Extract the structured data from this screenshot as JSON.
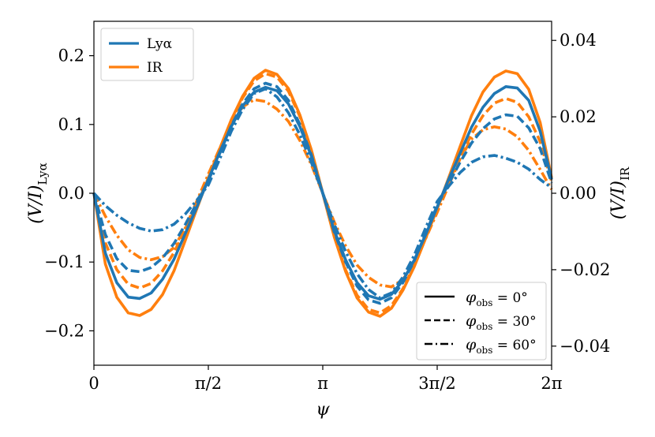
{
  "chart_data": {
    "type": "line",
    "xlabel": "ψ",
    "ylabel_left": "(V/I)",
    "ylabel_left_sub": "Lyα",
    "ylabel_right": "(V/I)",
    "ylabel_right_sub": "IR",
    "xlim": [
      0,
      6.2832
    ],
    "ylim_left": [
      -0.25,
      0.25
    ],
    "ylim_right": [
      -0.045,
      0.045
    ],
    "x_ticks": [
      0,
      1.5708,
      3.1416,
      4.7124,
      6.2832
    ],
    "x_tick_labels": [
      "0",
      "π/2",
      "π",
      "3π/2",
      "2π"
    ],
    "y_ticks_left": [
      -0.2,
      -0.1,
      0.0,
      0.1,
      0.2
    ],
    "y_tick_labels_left": [
      "−0.2",
      "−0.1",
      "0.0",
      "0.1",
      "0.2"
    ],
    "y_ticks_right": [
      -0.04,
      -0.02,
      0.0,
      0.02,
      0.04
    ],
    "y_tick_labels_right": [
      "−0.04",
      "−0.02",
      "0.00",
      "0.02",
      "0.04"
    ],
    "grid": false,
    "legend_color": {
      "placement": "top-left",
      "entries": [
        {
          "label": "Lyα",
          "color": "#1f77b4"
        },
        {
          "label": "IR",
          "color": "#ff7f0e"
        }
      ]
    },
    "legend_style": {
      "placement": "bottom-right",
      "entries": [
        {
          "label": "φ",
          "sub": "obs",
          "value": " = 0°",
          "dash": "solid"
        },
        {
          "label": "φ",
          "sub": "obs",
          "value": " = 30°",
          "dash": "dashed"
        },
        {
          "label": "φ",
          "sub": "obs",
          "value": " = 60°",
          "dash": "dashdot"
        }
      ]
    },
    "series": [
      {
        "group": "Lyα",
        "axis": "left",
        "dash": "solid",
        "color": "#1f77b4",
        "x": [
          0,
          0.1571,
          0.3142,
          0.4712,
          0.6283,
          0.7854,
          0.9425,
          1.0996,
          1.2566,
          1.4137,
          1.5708,
          1.7279,
          1.885,
          2.042,
          2.1991,
          2.3562,
          2.5133,
          2.6704,
          2.8274,
          2.9845,
          3.1416,
          3.2987,
          3.4558,
          3.6128,
          3.7699,
          3.927,
          4.0841,
          4.2412,
          4.3982,
          4.5553,
          4.7124,
          4.8695,
          5.0265,
          5.1836,
          5.3407,
          5.4978,
          5.6549,
          5.8119,
          5.969,
          6.1261,
          6.2832
        ],
        "y": [
          0.0,
          -0.087,
          -0.13,
          -0.151,
          -0.153,
          -0.145,
          -0.125,
          -0.096,
          -0.058,
          -0.02,
          0.02,
          0.06,
          0.097,
          0.127,
          0.147,
          0.154,
          0.149,
          0.13,
          0.097,
          0.054,
          0.0,
          -0.054,
          -0.097,
          -0.13,
          -0.149,
          -0.154,
          -0.147,
          -0.127,
          -0.097,
          -0.06,
          -0.02,
          0.02,
          0.058,
          0.096,
          0.125,
          0.145,
          0.155,
          0.153,
          0.135,
          0.09,
          0.02
        ]
      },
      {
        "group": "Lyα",
        "axis": "left",
        "dash": "dashed",
        "color": "#1f77b4",
        "x": [
          0,
          0.1571,
          0.3142,
          0.4712,
          0.6283,
          0.7854,
          0.9425,
          1.0996,
          1.2566,
          1.4137,
          1.5708,
          1.7279,
          1.885,
          2.042,
          2.1991,
          2.3562,
          2.5133,
          2.6704,
          2.8274,
          2.9845,
          3.1416,
          3.2987,
          3.4558,
          3.6128,
          3.7699,
          3.927,
          4.0841,
          4.2412,
          4.3982,
          4.5553,
          4.7124,
          4.8695,
          5.0265,
          5.1836,
          5.3407,
          5.4978,
          5.6549,
          5.8119,
          5.969,
          6.1261,
          6.2832
        ],
        "y": [
          0.0,
          -0.06,
          -0.095,
          -0.112,
          -0.114,
          -0.108,
          -0.094,
          -0.073,
          -0.045,
          -0.014,
          0.018,
          0.058,
          0.098,
          0.13,
          0.152,
          0.16,
          0.155,
          0.135,
          0.1,
          0.056,
          0.0,
          -0.056,
          -0.1,
          -0.135,
          -0.155,
          -0.16,
          -0.152,
          -0.13,
          -0.098,
          -0.058,
          -0.018,
          0.014,
          0.045,
          0.073,
          0.094,
          0.108,
          0.114,
          0.112,
          0.095,
          0.065,
          0.015
        ]
      },
      {
        "group": "Lyα",
        "axis": "left",
        "dash": "dashdot",
        "color": "#1f77b4",
        "x": [
          0,
          0.1571,
          0.3142,
          0.4712,
          0.6283,
          0.7854,
          0.9425,
          1.0996,
          1.2566,
          1.4137,
          1.5708,
          1.7279,
          1.885,
          2.042,
          2.1991,
          2.3562,
          2.5133,
          2.6704,
          2.8274,
          2.9845,
          3.1416,
          3.2987,
          3.4558,
          3.6128,
          3.7699,
          3.927,
          4.0841,
          4.2412,
          4.3982,
          4.5553,
          4.7124,
          4.8695,
          5.0265,
          5.1836,
          5.3407,
          5.4978,
          5.6549,
          5.8119,
          5.969,
          6.1261,
          6.2832
        ],
        "y": [
          0.0,
          -0.018,
          -0.032,
          -0.043,
          -0.051,
          -0.055,
          -0.053,
          -0.045,
          -0.03,
          -0.01,
          0.012,
          0.05,
          0.09,
          0.122,
          0.145,
          0.152,
          0.14,
          0.117,
          0.085,
          0.045,
          0.0,
          -0.045,
          -0.085,
          -0.117,
          -0.14,
          -0.152,
          -0.145,
          -0.122,
          -0.09,
          -0.05,
          -0.012,
          0.01,
          0.03,
          0.045,
          0.053,
          0.055,
          0.051,
          0.045,
          0.035,
          0.02,
          0.008
        ]
      },
      {
        "group": "IR",
        "axis": "right",
        "dash": "solid",
        "color": "#ff7f0e",
        "x": [
          0,
          0.1571,
          0.3142,
          0.4712,
          0.6283,
          0.7854,
          0.9425,
          1.0996,
          1.2566,
          1.4137,
          1.5708,
          1.7279,
          1.885,
          2.042,
          2.1991,
          2.3562,
          2.5133,
          2.6704,
          2.8274,
          2.9845,
          3.1416,
          3.2987,
          3.4558,
          3.6128,
          3.7699,
          3.927,
          4.0841,
          4.2412,
          4.3982,
          4.5553,
          4.7124,
          4.8695,
          5.0265,
          5.1836,
          5.3407,
          5.4978,
          5.6549,
          5.8119,
          5.969,
          6.1261,
          6.2832
        ],
        "y": [
          0.0,
          -0.0185,
          -0.0272,
          -0.0313,
          -0.032,
          -0.0304,
          -0.0265,
          -0.0203,
          -0.0122,
          -0.004,
          0.004,
          0.0117,
          0.0192,
          0.0254,
          0.0301,
          0.0322,
          0.0311,
          0.0274,
          0.0205,
          0.0114,
          0.0,
          -0.0114,
          -0.0205,
          -0.0274,
          -0.0311,
          -0.0322,
          -0.0301,
          -0.0254,
          -0.0192,
          -0.0117,
          -0.004,
          0.004,
          0.0122,
          0.0203,
          0.0265,
          0.0304,
          0.032,
          0.0313,
          0.0272,
          0.0185,
          0.004
        ]
      },
      {
        "group": "IR",
        "axis": "right",
        "dash": "dashed",
        "color": "#ff7f0e",
        "x": [
          0,
          0.1571,
          0.3142,
          0.4712,
          0.6283,
          0.7854,
          0.9425,
          1.0996,
          1.2566,
          1.4137,
          1.5708,
          1.7279,
          1.885,
          2.042,
          2.1991,
          2.3562,
          2.5133,
          2.6704,
          2.8274,
          2.9845,
          3.1416,
          3.2987,
          3.4558,
          3.6128,
          3.7699,
          3.927,
          4.0841,
          4.2412,
          4.3982,
          4.5553,
          4.7124,
          4.8695,
          5.0265,
          5.1836,
          5.3407,
          5.4978,
          5.6549,
          5.8119,
          5.969,
          6.1261,
          6.2832
        ],
        "y": [
          0.0,
          -0.013,
          -0.02,
          -0.0238,
          -0.0248,
          -0.0236,
          -0.0203,
          -0.0155,
          -0.0093,
          -0.003,
          0.004,
          0.0116,
          0.0188,
          0.025,
          0.0294,
          0.0313,
          0.0304,
          0.0267,
          0.0201,
          0.0112,
          0.0,
          -0.0112,
          -0.0201,
          -0.0267,
          -0.0304,
          -0.0313,
          -0.0294,
          -0.025,
          -0.0188,
          -0.0116,
          -0.004,
          0.003,
          0.0093,
          0.0155,
          0.0203,
          0.0236,
          0.0248,
          0.0238,
          0.02,
          0.0135,
          0.003
        ]
      },
      {
        "group": "IR",
        "axis": "right",
        "dash": "dashdot",
        "color": "#ff7f0e",
        "x": [
          0,
          0.1571,
          0.3142,
          0.4712,
          0.6283,
          0.7854,
          0.9425,
          1.0996,
          1.2566,
          1.4137,
          1.5708,
          1.7279,
          1.885,
          2.042,
          2.1991,
          2.3562,
          2.5133,
          2.6704,
          2.8274,
          2.9845,
          3.1416,
          3.2987,
          3.4558,
          3.6128,
          3.7699,
          3.927,
          4.0841,
          4.2412,
          4.3982,
          4.5553,
          4.7124,
          4.8695,
          5.0265,
          5.1836,
          5.3407,
          5.4978,
          5.6549,
          5.8119,
          5.969,
          6.1261,
          6.2832
        ],
        "y": [
          0.0,
          -0.006,
          -0.011,
          -0.0148,
          -0.0168,
          -0.0174,
          -0.0166,
          -0.0142,
          -0.009,
          -0.002,
          0.005,
          0.0118,
          0.018,
          0.0226,
          0.0245,
          0.024,
          0.022,
          0.0188,
          0.0138,
          0.0075,
          0.0,
          -0.0075,
          -0.0138,
          -0.0188,
          -0.022,
          -0.024,
          -0.0245,
          -0.0226,
          -0.018,
          -0.0118,
          -0.005,
          0.002,
          0.009,
          0.0142,
          0.0166,
          0.0174,
          0.0168,
          0.0148,
          0.0112,
          0.0062,
          0.001
        ]
      }
    ]
  }
}
